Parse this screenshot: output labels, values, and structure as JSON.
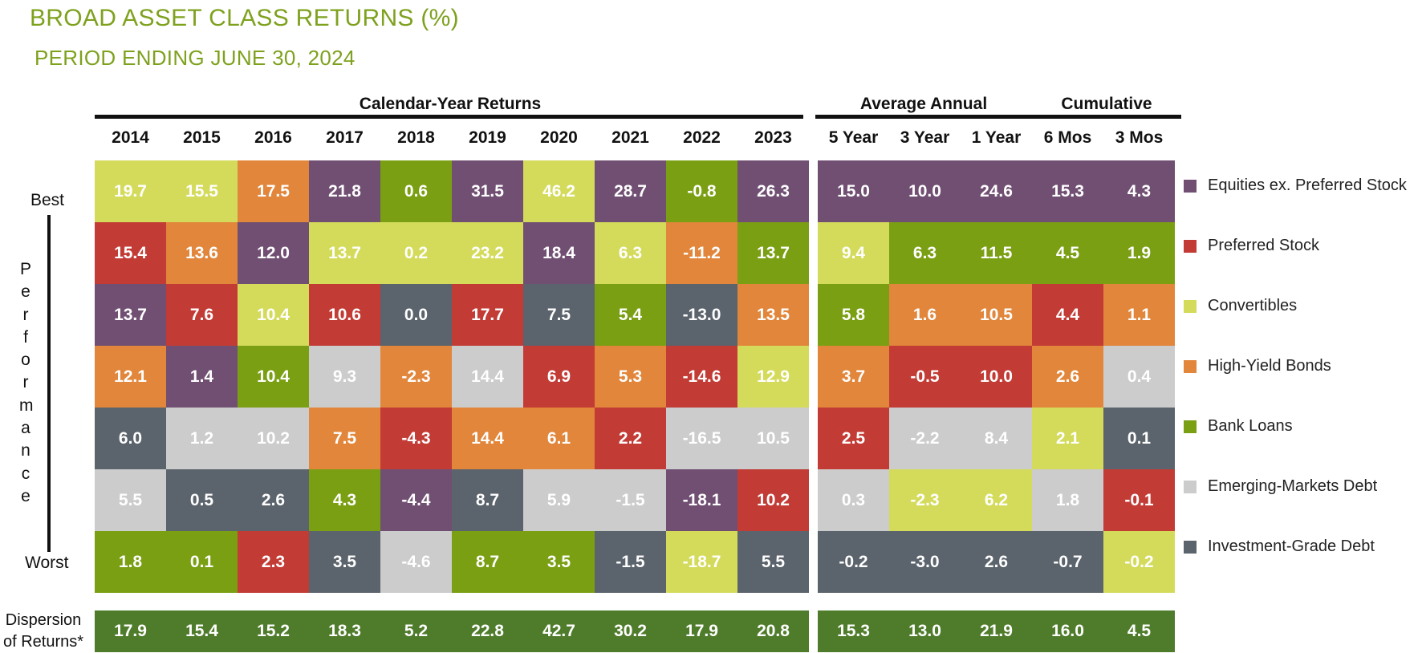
{
  "title": "BROAD ASSET CLASS RETURNS (%)",
  "subtitle": "PERIOD ENDING JUNE 30, 2024",
  "groups": {
    "calendar": "Calendar-Year Returns",
    "average": "Average Annual",
    "cumulative": "Cumulative"
  },
  "labels": {
    "best": "Best",
    "worst": "Worst",
    "performance": "Performance",
    "dispersion_line1": "Dispersion",
    "dispersion_line2": "of Returns*"
  },
  "colors": {
    "Equities ex. Preferred Stock": "#714f73",
    "Preferred Stock": "#c23b35",
    "Convertibles": "#d4db5b",
    "High-Yield Bonds": "#e1863a",
    "Bank Loans": "#7a9f13",
    "Emerging-Markets Debt": "#cccccc",
    "Investment-Grade Debt": "#5b636c",
    "dispersion": "#4f7c2b"
  },
  "chart_data": {
    "type": "table",
    "title": "BROAD ASSET CLASS RETURNS (%)",
    "subtitle": "PERIOD ENDING JUNE 30, 2024",
    "legend": [
      "Equities ex. Preferred Stock",
      "Preferred Stock",
      "Convertibles",
      "High-Yield Bonds",
      "Bank Loans",
      "Emerging-Markets Debt",
      "Investment-Grade Debt"
    ],
    "columns": [
      {
        "label": "2014",
        "cells": [
          [
            "Convertibles",
            "19.7"
          ],
          [
            "Preferred Stock",
            "15.4"
          ],
          [
            "Equities ex. Preferred Stock",
            "13.7"
          ],
          [
            "High-Yield Bonds",
            "12.1"
          ],
          [
            "Investment-Grade Debt",
            "6.0"
          ],
          [
            "Emerging-Markets Debt",
            "5.5"
          ],
          [
            "Bank Loans",
            "1.8"
          ]
        ],
        "dispersion": "17.9"
      },
      {
        "label": "2015",
        "cells": [
          [
            "Convertibles",
            "15.5"
          ],
          [
            "High-Yield Bonds",
            "13.6"
          ],
          [
            "Preferred Stock",
            "7.6"
          ],
          [
            "Equities ex. Preferred Stock",
            "1.4"
          ],
          [
            "Emerging-Markets Debt",
            "1.2"
          ],
          [
            "Investment-Grade Debt",
            "0.5"
          ],
          [
            "Bank Loans",
            "0.1"
          ]
        ],
        "dispersion": "15.4"
      },
      {
        "label": "2016",
        "cells": [
          [
            "High-Yield Bonds",
            "17.5"
          ],
          [
            "Equities ex. Preferred Stock",
            "12.0"
          ],
          [
            "Convertibles",
            "10.4"
          ],
          [
            "Bank Loans",
            "10.4"
          ],
          [
            "Emerging-Markets Debt",
            "10.2"
          ],
          [
            "Investment-Grade Debt",
            "2.6"
          ],
          [
            "Preferred Stock",
            "2.3"
          ]
        ],
        "dispersion": "15.2"
      },
      {
        "label": "2017",
        "cells": [
          [
            "Equities ex. Preferred Stock",
            "21.8"
          ],
          [
            "Convertibles",
            "13.7"
          ],
          [
            "Preferred Stock",
            "10.6"
          ],
          [
            "Emerging-Markets Debt",
            "9.3"
          ],
          [
            "High-Yield Bonds",
            "7.5"
          ],
          [
            "Bank Loans",
            "4.3"
          ],
          [
            "Investment-Grade Debt",
            "3.5"
          ]
        ],
        "dispersion": "18.3"
      },
      {
        "label": "2018",
        "cells": [
          [
            "Bank Loans",
            "0.6"
          ],
          [
            "Convertibles",
            "0.2"
          ],
          [
            "Investment-Grade Debt",
            "0.0"
          ],
          [
            "High-Yield Bonds",
            "-2.3"
          ],
          [
            "Preferred Stock",
            "-4.3"
          ],
          [
            "Equities ex. Preferred Stock",
            "-4.4"
          ],
          [
            "Emerging-Markets Debt",
            "-4.6"
          ]
        ],
        "dispersion": "5.2"
      },
      {
        "label": "2019",
        "cells": [
          [
            "Equities ex. Preferred Stock",
            "31.5"
          ],
          [
            "Convertibles",
            "23.2"
          ],
          [
            "Preferred Stock",
            "17.7"
          ],
          [
            "Emerging-Markets Debt",
            "14.4"
          ],
          [
            "High-Yield Bonds",
            "14.4"
          ],
          [
            "Investment-Grade Debt",
            "8.7"
          ],
          [
            "Bank Loans",
            "8.7"
          ]
        ],
        "dispersion": "22.8"
      },
      {
        "label": "2020",
        "cells": [
          [
            "Convertibles",
            "46.2"
          ],
          [
            "Equities ex. Preferred Stock",
            "18.4"
          ],
          [
            "Investment-Grade Debt",
            "7.5"
          ],
          [
            "Preferred Stock",
            "6.9"
          ],
          [
            "High-Yield Bonds",
            "6.1"
          ],
          [
            "Emerging-Markets Debt",
            "5.9"
          ],
          [
            "Bank Loans",
            "3.5"
          ]
        ],
        "dispersion": "42.7"
      },
      {
        "label": "2021",
        "cells": [
          [
            "Equities ex. Preferred Stock",
            "28.7"
          ],
          [
            "Convertibles",
            "6.3"
          ],
          [
            "Bank Loans",
            "5.4"
          ],
          [
            "High-Yield Bonds",
            "5.3"
          ],
          [
            "Preferred Stock",
            "2.2"
          ],
          [
            "Emerging-Markets Debt",
            "-1.5"
          ],
          [
            "Investment-Grade Debt",
            "-1.5"
          ]
        ],
        "dispersion": "30.2"
      },
      {
        "label": "2022",
        "cells": [
          [
            "Bank Loans",
            "-0.8"
          ],
          [
            "High-Yield Bonds",
            "-11.2"
          ],
          [
            "Investment-Grade Debt",
            "-13.0"
          ],
          [
            "Preferred Stock",
            "-14.6"
          ],
          [
            "Emerging-Markets Debt",
            "-16.5"
          ],
          [
            "Equities ex. Preferred Stock",
            "-18.1"
          ],
          [
            "Convertibles",
            "-18.7"
          ]
        ],
        "dispersion": "17.9"
      },
      {
        "label": "2023",
        "cells": [
          [
            "Equities ex. Preferred Stock",
            "26.3"
          ],
          [
            "Bank Loans",
            "13.7"
          ],
          [
            "High-Yield Bonds",
            "13.5"
          ],
          [
            "Convertibles",
            "12.9"
          ],
          [
            "Emerging-Markets Debt",
            "10.5"
          ],
          [
            "Preferred Stock",
            "10.2"
          ],
          [
            "Investment-Grade Debt",
            "5.5"
          ]
        ],
        "dispersion": "20.8"
      },
      {
        "label": "5 Year",
        "cells": [
          [
            "Equities ex. Preferred Stock",
            "15.0"
          ],
          [
            "Convertibles",
            "9.4"
          ],
          [
            "Bank Loans",
            "5.8"
          ],
          [
            "High-Yield Bonds",
            "3.7"
          ],
          [
            "Preferred Stock",
            "2.5"
          ],
          [
            "Emerging-Markets Debt",
            "0.3"
          ],
          [
            "Investment-Grade Debt",
            "-0.2"
          ]
        ],
        "dispersion": "15.3"
      },
      {
        "label": "3 Year",
        "cells": [
          [
            "Equities ex. Preferred Stock",
            "10.0"
          ],
          [
            "Bank Loans",
            "6.3"
          ],
          [
            "High-Yield Bonds",
            "1.6"
          ],
          [
            "Preferred Stock",
            "-0.5"
          ],
          [
            "Emerging-Markets Debt",
            "-2.2"
          ],
          [
            "Convertibles",
            "-2.3"
          ],
          [
            "Investment-Grade Debt",
            "-3.0"
          ]
        ],
        "dispersion": "13.0"
      },
      {
        "label": "1 Year",
        "cells": [
          [
            "Equities ex. Preferred Stock",
            "24.6"
          ],
          [
            "Bank Loans",
            "11.5"
          ],
          [
            "High-Yield Bonds",
            "10.5"
          ],
          [
            "Preferred Stock",
            "10.0"
          ],
          [
            "Emerging-Markets Debt",
            "8.4"
          ],
          [
            "Convertibles",
            "6.2"
          ],
          [
            "Investment-Grade Debt",
            "2.6"
          ]
        ],
        "dispersion": "21.9"
      },
      {
        "label": "6 Mos",
        "cells": [
          [
            "Equities ex. Preferred Stock",
            "15.3"
          ],
          [
            "Bank Loans",
            "4.5"
          ],
          [
            "Preferred Stock",
            "4.4"
          ],
          [
            "High-Yield Bonds",
            "2.6"
          ],
          [
            "Convertibles",
            "2.1"
          ],
          [
            "Emerging-Markets Debt",
            "1.8"
          ],
          [
            "Investment-Grade Debt",
            "-0.7"
          ]
        ],
        "dispersion": "16.0"
      },
      {
        "label": "3 Mos",
        "cells": [
          [
            "Equities ex. Preferred Stock",
            "4.3"
          ],
          [
            "Bank Loans",
            "1.9"
          ],
          [
            "High-Yield Bonds",
            "1.1"
          ],
          [
            "Emerging-Markets Debt",
            "0.4"
          ],
          [
            "Investment-Grade Debt",
            "0.1"
          ],
          [
            "Preferred Stock",
            "-0.1"
          ],
          [
            "Convertibles",
            "-0.2"
          ]
        ],
        "dispersion": "4.5"
      }
    ]
  }
}
